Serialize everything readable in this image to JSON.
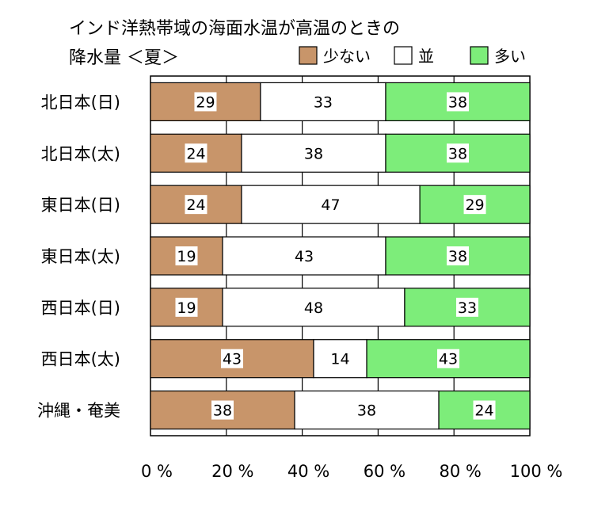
{
  "chart_data": {
    "type": "bar",
    "orientation": "horizontal",
    "stacked": true,
    "title_lines": [
      "インド洋熱帯域の海面水温が高温のときの",
      "降水量 ＜夏＞"
    ],
    "categories": [
      "北日本(日)",
      "北日本(太)",
      "東日本(日)",
      "東日本(太)",
      "西日本(日)",
      "西日本(太)",
      "沖縄・奄美"
    ],
    "series": [
      {
        "name": "少ない",
        "color": "#c8956a",
        "values": [
          29,
          24,
          24,
          19,
          19,
          43,
          38
        ]
      },
      {
        "name": "並",
        "color": "#ffffff",
        "values": [
          33,
          38,
          47,
          43,
          48,
          14,
          38
        ]
      },
      {
        "name": "多い",
        "color": "#7ded7a",
        "values": [
          38,
          38,
          29,
          38,
          33,
          43,
          24
        ]
      }
    ],
    "x_ticks": [
      "0 %",
      "20 %",
      "40 %",
      "60 %",
      "80 %",
      "100 %"
    ],
    "xlim": [
      0,
      100
    ],
    "grid": true,
    "legend_position": "top-right"
  }
}
